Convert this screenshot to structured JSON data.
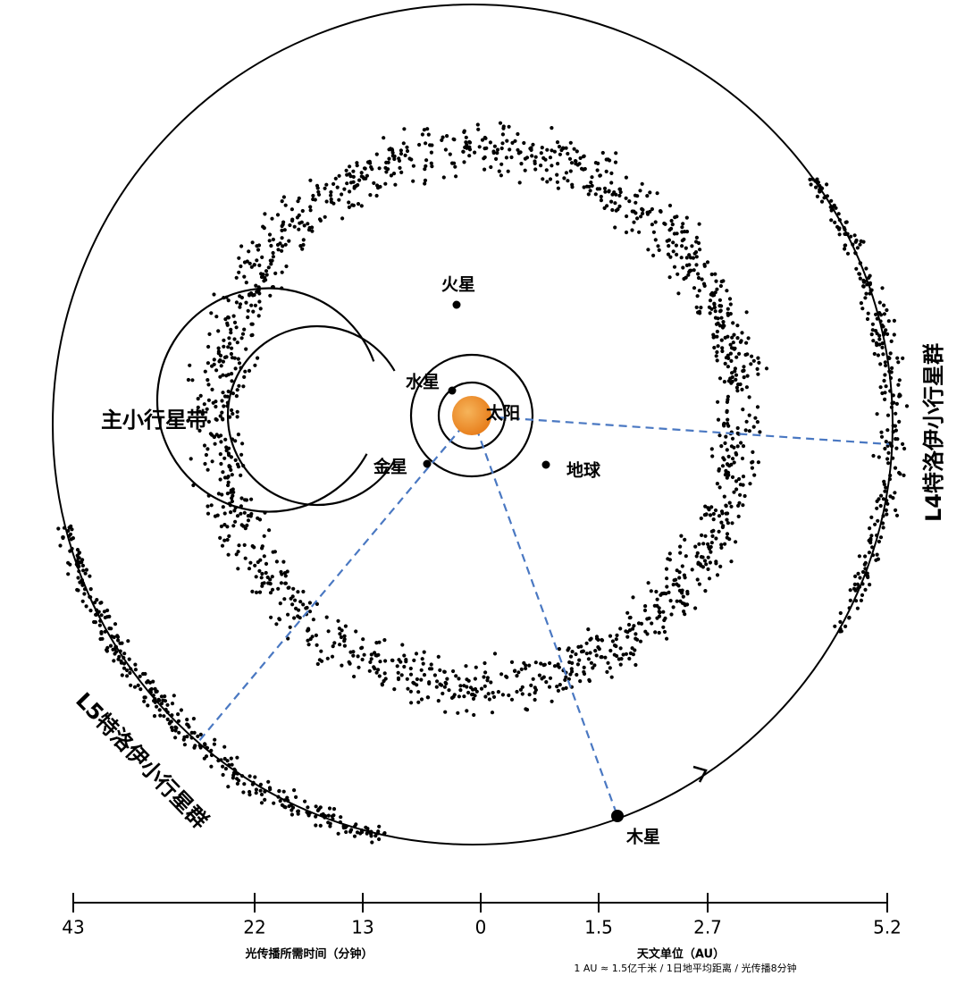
{
  "bodies": {
    "sun": "太阳",
    "mercury": "水星",
    "venus": "金星",
    "earth": "地球",
    "mars": "火星",
    "jupiter": "木星"
  },
  "regions": {
    "main_belt": "主小行星带",
    "l4": "L4特洛伊小行星群",
    "l5": "L5特洛伊小行星群"
  },
  "scale": {
    "ticks": [
      "43",
      "22",
      "13",
      "0",
      "1.5",
      "2.7",
      "5.2"
    ],
    "left_caption": "光传播所需时间（分钟）",
    "right_caption": "天文单位（AU）",
    "note": "1 AU ≈ 1.5亿千米 / 1日地平均距离 / 光传播8分钟"
  }
}
